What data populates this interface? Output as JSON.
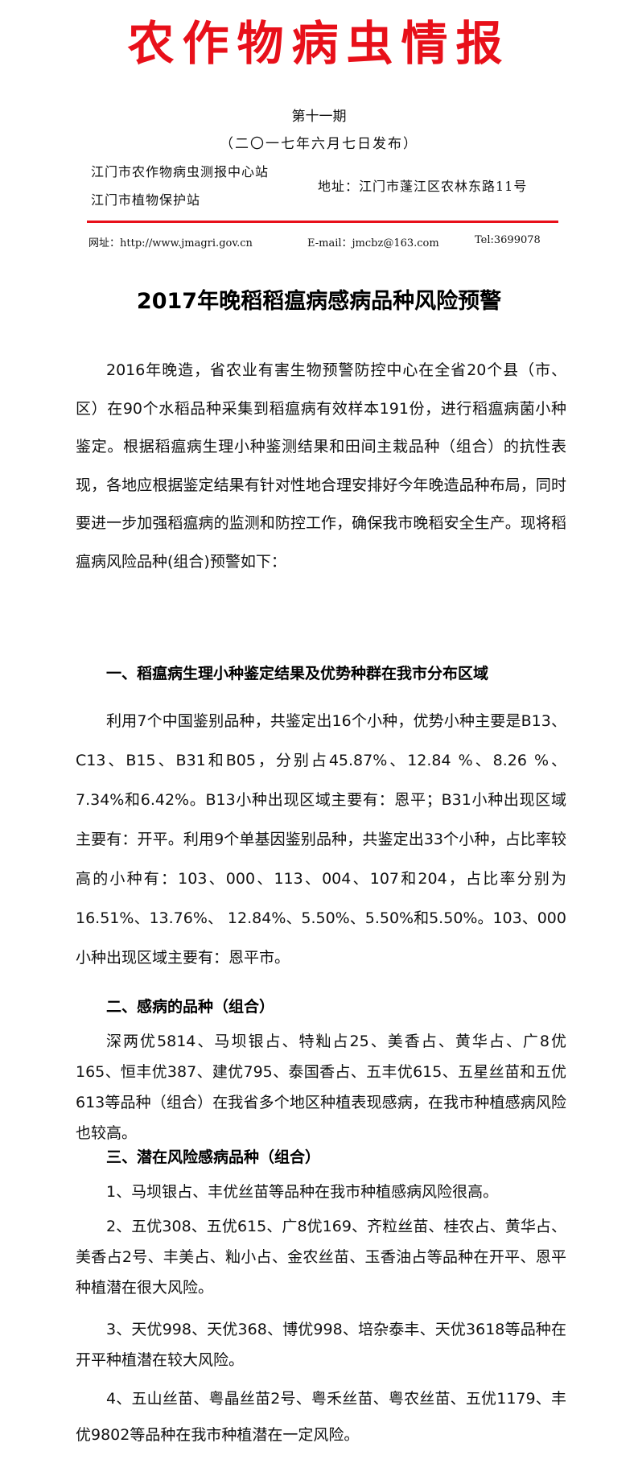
{
  "header": {
    "masthead": "农作物病虫情报",
    "issue_no": "第十一期",
    "issue_date": "（二〇一七年六月七日发布）",
    "org_1": "江门市农作物病虫测报中心站",
    "org_2": "江门市植物保护站",
    "address": "地址：江门市蓬江区农林东路11号",
    "website": "网址：http://www.jmagri.gov.cn",
    "email": "E-mail：jmcbz@163.com",
    "tel": "Tel:3699078",
    "accent_color": "#e8101a"
  },
  "article": {
    "title": "2017年晚稻稻瘟病感病品种风险预警",
    "intro": "2016年晚造，省农业有害生物预警防控中心在全省20个县（市、区）在90个水稻品种采集到稻瘟病有效样本191份，进行稻瘟病菌小种鉴定。根据稻瘟病生理小种鉴测结果和田间主栽品种（组合）的抗性表现，各地应根据鉴定结果有针对性地合理安排好今年晚造品种布局，同时要进一步加强稻瘟病的监测和防控工作，确保我市晚稻安全生产。现将稻瘟病风险品种(组合)预警如下：",
    "section1": {
      "heading": "一、稻瘟病生理小种鉴定结果及优势种群在我市分布区域",
      "body": "利用7个中国鉴别品种，共鉴定出16个小种，优势小种主要是B13、C13、B15、B31和B05，分别占45.87%、12.84 %、8.26 %、7.34%和6.42%。B13小种出现区域主要有：恩平；B31小种出现区域主要有：开平。利用9个单基因鉴别品种，共鉴定出33个小种，占比率较高的小种有：103、000、113、004、107和204，占比率分别为16.51%、13.76%、 12.84%、5.50%、5.50%和5.50%。103、000小种出现区域主要有：恩平市。"
    },
    "section2": {
      "heading": "二、感病的品种（组合）",
      "body": "深两优5814、马坝银占、特籼占25、美香占、黄华占、广8优165、恒丰优387、建优795、泰国香占、五丰优615、五星丝苗和五优613等品种（组合）在我省多个地区种植表现感病，在我市种植感病风险也较高。"
    },
    "section3": {
      "heading": "三、潜在风险感病品种（组合）",
      "items": [
        "1、马坝银占、丰优丝苗等品种在我市种植感病风险很高。",
        "2、五优308、五优615、广8优169、齐粒丝苗、桂农占、黄华占、美香占2号、丰美占、籼小占、金农丝苗、玉香油占等品种在开平、恩平种植潜在很大风险。",
        "3、天优998、天优368、博优998、培杂泰丰、天优3618等品种在开平种植潜在较大风险。",
        "4、五山丝苗、粤晶丝苗2号、粤禾丝苗、粤农丝苗、五优1179、丰优9802等品种在我市种植潜在一定风险。"
      ]
    }
  }
}
